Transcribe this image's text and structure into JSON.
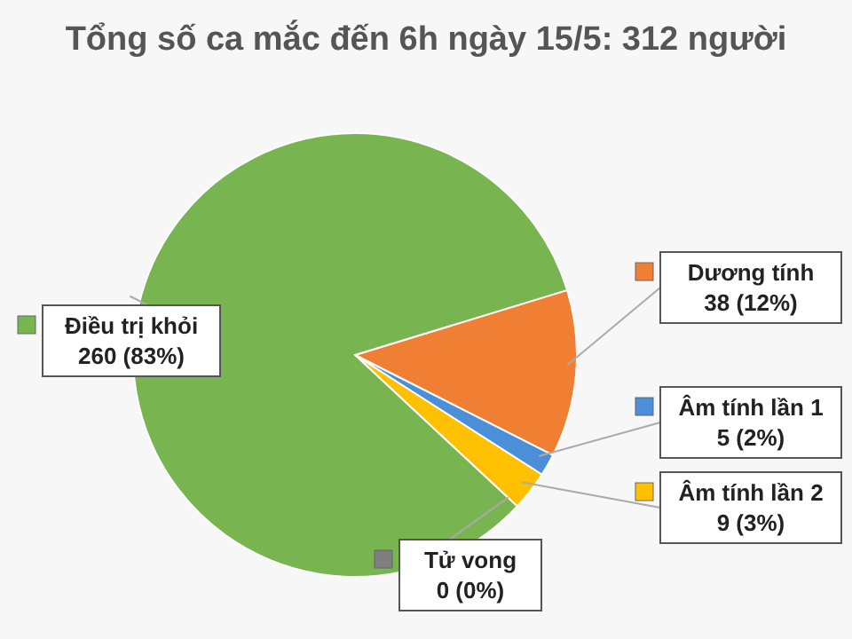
{
  "chart_data": {
    "type": "pie",
    "title": "Tổng số ca mắc đến 6h ngày 15/5: 312 người",
    "categories": [
      "Dương tính",
      "Âm tính lần 1",
      "Âm tính lần 2",
      "Tử vong",
      "Điều trị khỏi"
    ],
    "values": [
      38,
      5,
      9,
      0,
      260
    ],
    "colors": [
      "#f07f33",
      "#4a8fd8",
      "#ffc000",
      "#7f7f7f",
      "#78b450"
    ],
    "value_labels": [
      "38 (12%)",
      "5 (2%)",
      "9 (3%)",
      "0 (0%)",
      "260 (83%)"
    ],
    "legend": "right"
  }
}
